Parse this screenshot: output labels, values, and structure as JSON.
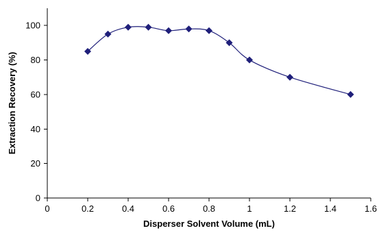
{
  "chart_data": {
    "type": "scatter",
    "xlabel": "Disperser Solvent Volume (mL)",
    "ylabel": "Extraction Recovery (%)",
    "xlim": [
      0,
      1.6
    ],
    "ylim": [
      0,
      110
    ],
    "xticks": [
      0,
      0.2,
      0.4,
      0.6,
      0.8,
      1,
      1.2,
      1.4,
      1.6
    ],
    "xtick_labels": [
      "0",
      "0.2",
      "0.4",
      "0.6",
      "0.8",
      "1",
      "1.2",
      "1.4",
      "1.6"
    ],
    "yticks": [
      0,
      20,
      40,
      60,
      80,
      100
    ],
    "ytick_labels": [
      "0",
      "20",
      "40",
      "60",
      "80",
      "100"
    ],
    "grid": false,
    "legend": "none",
    "line_style": "smoothed",
    "marker": "diamond",
    "series": [
      {
        "color": "#1f1f7a",
        "points": [
          {
            "x": 0.2,
            "y": 85
          },
          {
            "x": 0.3,
            "y": 95
          },
          {
            "x": 0.4,
            "y": 99
          },
          {
            "x": 0.5,
            "y": 99
          },
          {
            "x": 0.6,
            "y": 97
          },
          {
            "x": 0.7,
            "y": 98
          },
          {
            "x": 0.8,
            "y": 97
          },
          {
            "x": 0.9,
            "y": 90
          },
          {
            "x": 1.0,
            "y": 80
          },
          {
            "x": 1.2,
            "y": 70
          },
          {
            "x": 1.5,
            "y": 60
          }
        ]
      }
    ]
  }
}
